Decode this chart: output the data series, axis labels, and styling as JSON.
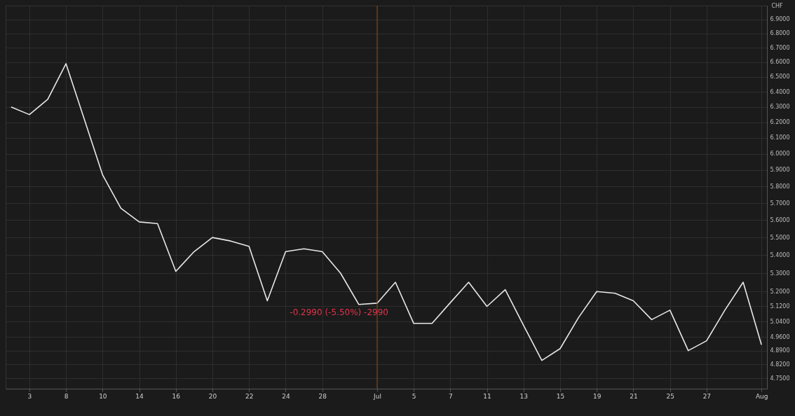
{
  "chart_data": {
    "type": "line",
    "ylabel": "CHF",
    "categories": [
      null,
      "3",
      null,
      "8",
      null,
      "10",
      null,
      "14",
      null,
      "16",
      null,
      "20",
      null,
      "22",
      null,
      "24",
      null,
      "28",
      null,
      null,
      "Jul",
      null,
      "5",
      null,
      "7",
      null,
      "11",
      null,
      "13",
      null,
      "15",
      null,
      "19",
      null,
      "21",
      null,
      "25",
      null,
      "27",
      null,
      null,
      "Aug"
    ],
    "series": [
      {
        "color": "#e8e8e8",
        "values": [
          6.3,
          6.25,
          6.35,
          6.59,
          6.22,
          5.87,
          5.67,
          5.59,
          5.58,
          5.31,
          5.42,
          5.5,
          5.48,
          5.45,
          5.15,
          5.42,
          5.436,
          5.42,
          5.3,
          5.13,
          5.137,
          5.25,
          5.03,
          5.03,
          5.14,
          5.25,
          5.12,
          5.21,
          5.02,
          4.84,
          4.9,
          5.06,
          5.2,
          5.19,
          5.15,
          5.05,
          5.1,
          4.89,
          4.94,
          5.1,
          5.25,
          4.92
        ]
      }
    ],
    "log": true,
    "ylim": [
      4.7,
      7.0
    ],
    "yticks": [
      {
        "value": 4.75,
        "label": "4.7500"
      },
      {
        "value": 4.82,
        "label": "4.8200"
      },
      {
        "value": 4.89,
        "label": "4.8900"
      },
      {
        "value": 4.96,
        "label": "4.9600"
      },
      {
        "value": 5.04,
        "label": "5.0400"
      },
      {
        "value": 5.12,
        "label": "5.1200"
      },
      {
        "value": 5.2,
        "label": "5.2000"
      },
      {
        "value": 5.3,
        "label": "5.3000"
      },
      {
        "value": 5.4,
        "label": "5.4000"
      },
      {
        "value": 5.5,
        "label": "5.5000"
      },
      {
        "value": 5.6,
        "label": "5.6000"
      },
      {
        "value": 5.7,
        "label": "5.7000"
      },
      {
        "value": 5.8,
        "label": "5.8000"
      },
      {
        "value": 5.9,
        "label": "5.9000"
      },
      {
        "value": 6.0,
        "label": "6.0000"
      },
      {
        "value": 6.1,
        "label": "6.1000"
      },
      {
        "value": 6.2,
        "label": "6.2000"
      },
      {
        "value": 6.3,
        "label": "6.3000"
      },
      {
        "value": 6.4,
        "label": "6.4000"
      },
      {
        "value": 6.5,
        "label": "6.5000"
      },
      {
        "value": 6.6,
        "label": "6.6000"
      },
      {
        "value": 6.7,
        "label": "6.7000"
      },
      {
        "value": 6.8,
        "label": "6.8000"
      },
      {
        "value": 6.9,
        "label": "6.9000"
      }
    ],
    "ref_lines": [
      {
        "axis": "x",
        "value": "Jul",
        "color": "#8a4a1a"
      }
    ],
    "annotations": [
      {
        "text": "-0.2990 (-5.50%) -2990",
        "x": "Jul",
        "y": 5.137
      }
    ],
    "grid": true,
    "marker": "none",
    "line_style": "solid"
  }
}
